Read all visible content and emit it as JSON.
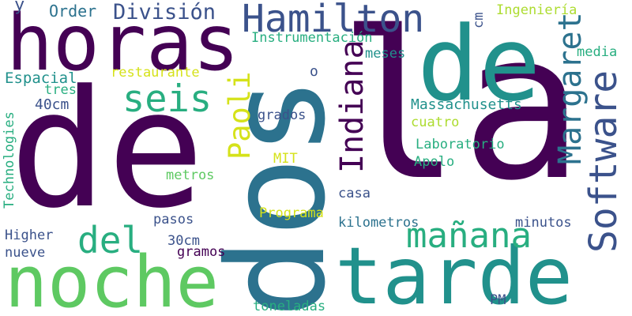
{
  "palette": {
    "dark_purple": "#440154",
    "indigo": "#3b528b",
    "blue_teal": "#2c728e",
    "teal": "#21918c",
    "green_teal": "#28ae80",
    "green": "#5ec962",
    "lime": "#addc30",
    "yellow": "#d5e21a"
  },
  "words": {
    "de_big": "de",
    "la": "la",
    "dos": "dos",
    "de_top": "de",
    "horas": "horas",
    "tarde": "tarde",
    "noche": "noche",
    "hamilton": "Hamilton",
    "seis": "seis",
    "del": "del",
    "manana": "mañana",
    "software": "Software",
    "margaret": "Margaret",
    "indiana": "Indiana",
    "paoli": "Paoli",
    "division": "División",
    "order": "Order",
    "y": "y",
    "ingenieria": "Ingeniería",
    "cm": "cm",
    "instrumentacion": "Instrumentación",
    "meses": "meses",
    "media": "media",
    "espacial": "Espacial",
    "tres": "tres",
    "restaurante": "restaurante",
    "o": "o",
    "cm40": "40cm",
    "massachusetts": "Massachusetts",
    "technologies": "Technologies",
    "grados": "grados",
    "cuatro": "cuatro",
    "laboratorio": "Laboratorio",
    "mit": "MIT",
    "apolo": "Apolo",
    "metros": "metros",
    "casa": "casa",
    "programa": "Programa",
    "pasos": "pasos",
    "kilometros": "kilometros",
    "minutos": "minutos",
    "higher": "Higher",
    "cm30": "30cm",
    "gramos": "gramos",
    "nueve": "nueve",
    "toneladas": "toneladas",
    "pm": "PM"
  }
}
